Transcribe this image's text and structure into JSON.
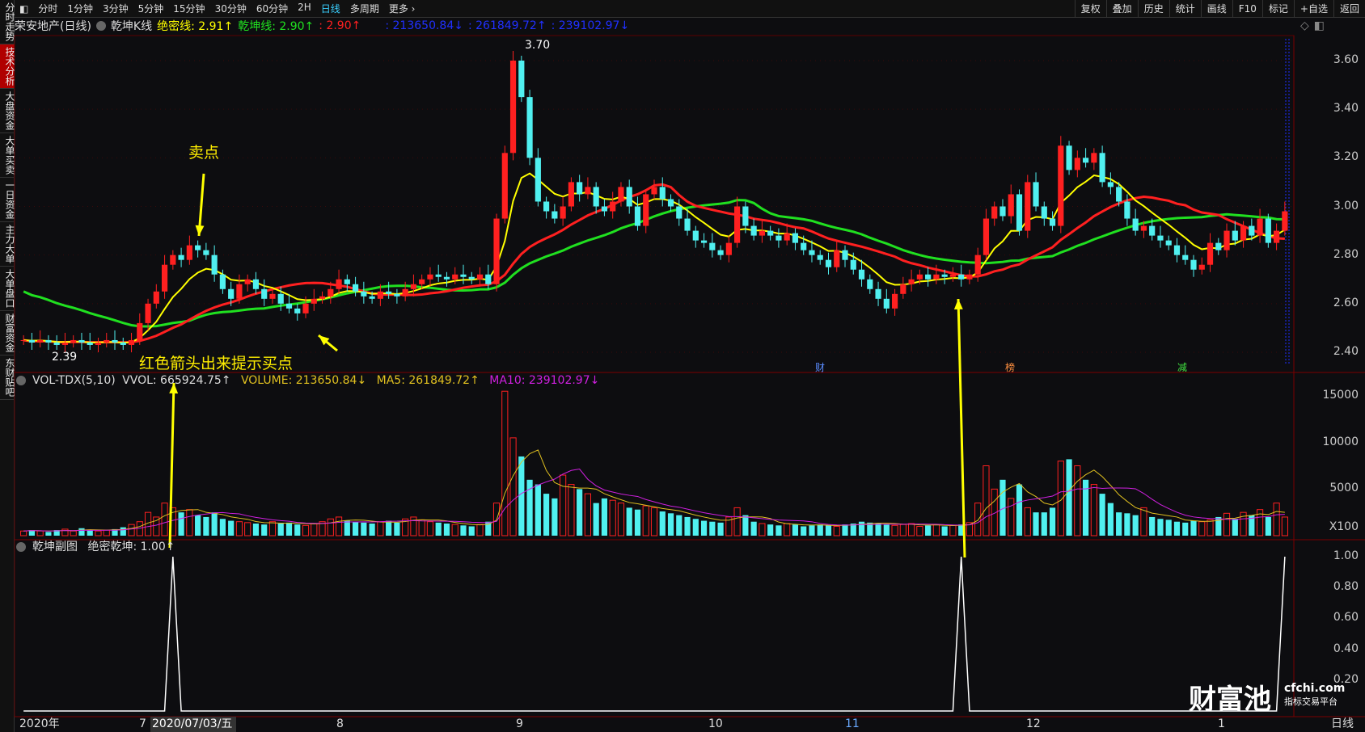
{
  "sidebar": {
    "items": [
      {
        "label": "分时走势",
        "active": false
      },
      {
        "label": "技术分析",
        "active": true
      },
      {
        "label": "大盘资金",
        "active": false
      },
      {
        "label": "大单买卖",
        "active": false
      },
      {
        "label": "一日资金",
        "active": false
      },
      {
        "label": "主力大单",
        "active": false
      },
      {
        "label": "大单盘口",
        "active": false
      },
      {
        "label": "财富资金",
        "active": false
      },
      {
        "label": "东财贴吧",
        "active": false
      }
    ]
  },
  "toolbar": {
    "periods": [
      "分时",
      "1分钟",
      "3分钟",
      "5分钟",
      "15分钟",
      "30分钟",
      "60分钟",
      "2H",
      "日线",
      "多周期",
      "更多 ›"
    ],
    "active_period": "日线",
    "actions": [
      "复权",
      "叠加",
      "历史",
      "统计",
      "画线",
      "F10",
      "标记",
      "+自选",
      "返回"
    ]
  },
  "header": {
    "stock": "荣安地产(日线)",
    "indicator": "乾坤K线",
    "jm_label": "绝密线: 2.91↑",
    "qk_label": "乾坤线: 2.90↑",
    "red_label": ": 2.90↑",
    "vol1": ": 213650.84↓",
    "vol2": ": 261849.72↑",
    "vol3": ": 239102.97↓"
  },
  "price_panel": {
    "axis_ticks": [
      "3.60",
      "3.40",
      "3.20",
      "3.00",
      "2.80",
      "2.60",
      "2.40"
    ],
    "high_label": "3.70",
    "low_label": "2.39",
    "events": [
      "财",
      "榜",
      "减"
    ],
    "colors": {
      "up": "#ff2020",
      "down": "#50f0f0",
      "ma_short": "#ffff00",
      "ma_mid": "#ff2020",
      "ma_long": "#20e020"
    }
  },
  "volume_panel": {
    "title": "VOL-TDX(5,10)",
    "vvol": "VVOL: 665924.75↑",
    "volume": "VOLUME: 213650.84↓",
    "ma5": "MA5: 261849.72↑",
    "ma10": "MA10: 239102.97↓",
    "axis_ticks": [
      "15000",
      "10000",
      "5000"
    ],
    "unit": "X100"
  },
  "sub_panel": {
    "title": "乾坤副图",
    "value": "绝密乾坤: 1.00↑",
    "axis_ticks": [
      "1.00",
      "0.80",
      "0.60",
      "0.40",
      "0.20"
    ]
  },
  "annotations": {
    "sell": "卖点",
    "buy": "红色箭头出来提示买点"
  },
  "xaxis": {
    "labels": [
      "2020年",
      "7",
      "8",
      "9",
      "10",
      "11",
      "12",
      "1"
    ],
    "cursor_date": "2020/07/03/五",
    "period": "日线"
  },
  "watermark": {
    "logo": "财富池",
    "site": "cfchi.com",
    "slogan": "指标交易平台"
  },
  "chart_data": {
    "type": "candlestick",
    "closes": [
      2.45,
      2.44,
      2.45,
      2.44,
      2.43,
      2.44,
      2.45,
      2.44,
      2.43,
      2.44,
      2.45,
      2.44,
      2.43,
      2.45,
      2.52,
      2.6,
      2.65,
      2.76,
      2.8,
      2.78,
      2.84,
      2.82,
      2.8,
      2.72,
      2.66,
      2.62,
      2.68,
      2.7,
      2.66,
      2.62,
      2.64,
      2.6,
      2.58,
      2.56,
      2.6,
      2.62,
      2.63,
      2.66,
      2.7,
      2.68,
      2.65,
      2.63,
      2.62,
      2.65,
      2.64,
      2.63,
      2.66,
      2.68,
      2.7,
      2.72,
      2.71,
      2.7,
      2.72,
      2.71,
      2.7,
      2.72,
      2.68,
      2.95,
      3.22,
      3.6,
      3.45,
      3.2,
      3.02,
      2.98,
      2.95,
      3.0,
      3.1,
      3.05,
      3.08,
      3.0,
      2.98,
      3.02,
      3.08,
      3.0,
      2.92,
      3.05,
      3.08,
      3.03,
      3.0,
      2.95,
      2.9,
      2.86,
      2.85,
      2.82,
      2.8,
      2.85,
      3.0,
      2.92,
      2.88,
      2.9,
      2.88,
      2.86,
      2.89,
      2.85,
      2.82,
      2.8,
      2.78,
      2.75,
      2.82,
      2.78,
      2.74,
      2.7,
      2.66,
      2.62,
      2.58,
      2.64,
      2.68,
      2.7,
      2.72,
      2.7,
      2.72,
      2.71,
      2.72,
      2.7,
      2.72,
      2.8,
      2.95,
      3.0,
      2.96,
      3.05,
      2.9,
      3.1,
      3.0,
      2.95,
      2.92,
      3.25,
      3.15,
      3.2,
      3.18,
      3.22,
      3.1,
      3.08,
      3.02,
      2.95,
      2.9,
      2.92,
      2.88,
      2.86,
      2.84,
      2.8,
      2.78,
      2.74,
      2.76,
      2.85,
      2.82,
      2.9,
      2.86,
      2.92,
      2.88,
      2.95,
      2.85,
      2.9,
      2.98
    ],
    "volumes": [
      500,
      600,
      500,
      400,
      600,
      700,
      500,
      800,
      600,
      500,
      600,
      700,
      900,
      1200,
      1500,
      2500,
      2000,
      3500,
      3000,
      2500,
      2800,
      2200,
      2000,
      2500,
      1800,
      1600,
      1500,
      1400,
      1300,
      1200,
      1500,
      1300,
      1400,
      1200,
      1100,
      1300,
      1500,
      1800,
      2000,
      1600,
      1500,
      1400,
      1300,
      1500,
      1600,
      1400,
      1800,
      2000,
      1700,
      1500,
      1400,
      1300,
      1200,
      1100,
      1000,
      1200,
      1500,
      3500,
      15500,
      10500,
      8500,
      6000,
      5500,
      4500,
      4000,
      6500,
      5500,
      5000,
      4500,
      3500,
      4000,
      3800,
      3500,
      3000,
      2800,
      3200,
      3000,
      2600,
      2400,
      2200,
      2000,
      1800,
      1600,
      1500,
      1400,
      2000,
      3000,
      2200,
      1500,
      1300,
      1200,
      1100,
      1300,
      1200,
      1000,
      1100,
      1200,
      1100,
      1000,
      1200,
      1300,
      1500,
      1400,
      1300,
      1200,
      1100,
      1200,
      1300,
      1000,
      1100,
      1200,
      1000,
      1100,
      1200,
      1400,
      3500,
      7500,
      5000,
      6000,
      4000,
      5500,
      3000,
      2500,
      2500,
      3000,
      8000,
      8200,
      7500,
      6000,
      5500,
      4500,
      3500,
      2500,
      2400,
      2200,
      3000,
      2000,
      1800,
      1700,
      1500,
      1400,
      1600,
      1500,
      1700,
      2000,
      2400,
      1800,
      2500,
      2200,
      2800,
      2000,
      3500,
      2000
    ],
    "signal_indices": [
      18,
      113,
      152
    ],
    "price_range": [
      2.35,
      3.75
    ],
    "volume_range": [
      0,
      17000
    ]
  }
}
